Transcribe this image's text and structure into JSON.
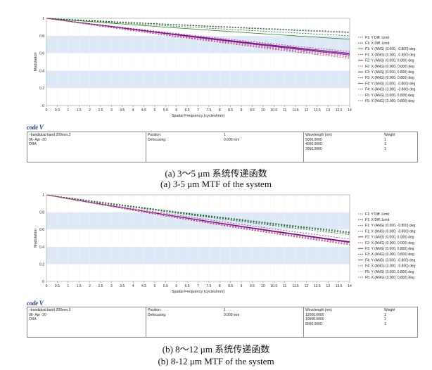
{
  "chart_data": [
    {
      "type": "line",
      "xlabel": "Spatial Frequency (cycles/mm)",
      "ylabel": "Modulation",
      "xlim": [
        0,
        14
      ],
      "ylim": [
        0,
        1
      ],
      "x_ticks": [
        "0",
        "0.5",
        "1",
        "1.5",
        "2",
        "2.5",
        "3",
        "3.5",
        "4",
        "4.5",
        "5",
        "5.5",
        "6",
        "6.5",
        "7",
        "7.5",
        "8",
        "8.5",
        "9",
        "9.5",
        "10",
        "10.5",
        "11",
        "11.5",
        "12",
        "12.5",
        "13",
        "13.5",
        "14"
      ],
      "y_ticks": [
        "0",
        "0.2",
        "0.4",
        "0.6",
        "0.8",
        "1"
      ],
      "legend_position": "right",
      "series": [
        {
          "name": "F1: Y Diff. Limit",
          "color": "#2e8b57",
          "dash": "2,2",
          "x": [
            0,
            14
          ],
          "y": [
            1.0,
            0.845
          ]
        },
        {
          "name": "F1: X Diff. Limit",
          "color": "#1a1a1a",
          "dash": "2,2",
          "x": [
            0,
            14
          ],
          "y": [
            1.0,
            0.835
          ]
        },
        {
          "name": "F1: Y (ANG) (0.000, -0.800) deg",
          "color": "#228b22",
          "dash": "",
          "x": [
            0,
            14
          ],
          "y": [
            1.0,
            0.76
          ]
        },
        {
          "name": "F1: X (ANG) (0.000, -0.800) deg",
          "color": "#c71585",
          "dash": "2,2",
          "x": [
            0,
            14
          ],
          "y": [
            1.0,
            0.62
          ]
        },
        {
          "name": "F2: Y (ANG) (0.000, 0.000) deg",
          "color": "#8b008b",
          "dash": "",
          "x": [
            0,
            14
          ],
          "y": [
            1.0,
            0.6
          ]
        },
        {
          "name": "F2: X (ANG) (0.000, 0.000) deg",
          "color": "#ff1493",
          "dash": "2,2",
          "x": [
            0,
            14
          ],
          "y": [
            1.0,
            0.575
          ]
        },
        {
          "name": "F3: Y (ANG) (0.000, 0.800) deg",
          "color": "#4b0082",
          "dash": "",
          "x": [
            0,
            14
          ],
          "y": [
            1.0,
            0.59
          ]
        },
        {
          "name": "F3: X (ANG) (0.000, 0.800) deg",
          "color": "#006400",
          "dash": "2,2",
          "x": [
            0,
            14
          ],
          "y": [
            1.0,
            0.8
          ]
        },
        {
          "name": "F4: Y (ANG) (3.000, -0.800) deg",
          "color": "#7b2d8b",
          "dash": "",
          "x": [
            0,
            14
          ],
          "y": [
            1.0,
            0.58
          ]
        },
        {
          "name": "F4: X (ANG) (3.000, -0.800) deg",
          "color": "#dc143c",
          "dash": "2,2",
          "x": [
            0,
            14
          ],
          "y": [
            1.0,
            0.555
          ]
        },
        {
          "name": "F5: Y (ANG) (3.000, 0.800) deg",
          "color": "#ee82ee",
          "dash": "2,2",
          "x": [
            0,
            14
          ],
          "y": [
            1.0,
            0.565
          ]
        },
        {
          "name": "F5: X (ANG) (3.000, 0.800) deg",
          "color": "#b03060",
          "dash": "2,2",
          "x": [
            0,
            14
          ],
          "y": [
            1.0,
            0.54
          ]
        }
      ]
    },
    {
      "type": "line",
      "xlabel": "Spatial Frequency (cycles/mm)",
      "ylabel": "Modulation",
      "xlim": [
        0,
        14
      ],
      "ylim": [
        0,
        1
      ],
      "x_ticks": [
        "0",
        "0.5",
        "1",
        "1.5",
        "2",
        "2.5",
        "3",
        "3.5",
        "4",
        "4.5",
        "5",
        "5.5",
        "6",
        "6.5",
        "7",
        "7.5",
        "8",
        "8.5",
        "9",
        "9.5",
        "10",
        "10.5",
        "11",
        "11.5",
        "12",
        "12.5",
        "13",
        "13.5",
        "14"
      ],
      "y_ticks": [
        "0",
        "0.2",
        "0.4",
        "0.6",
        "0.8",
        "1"
      ],
      "legend_position": "right",
      "series": [
        {
          "name": "F1: Y Diff. Limit",
          "color": "#2e8b57",
          "dash": "2,2",
          "x": [
            0,
            14
          ],
          "y": [
            1.0,
            0.575
          ]
        },
        {
          "name": "F1: X Diff. Limit",
          "color": "#1a1a1a",
          "dash": "2,2",
          "x": [
            0,
            14
          ],
          "y": [
            1.0,
            0.565
          ]
        },
        {
          "name": "F1: Y (ANG) (0.000, -0.800) deg",
          "color": "#228b22",
          "dash": "2,2",
          "x": [
            0,
            14
          ],
          "y": [
            1.0,
            0.555
          ]
        },
        {
          "name": "F1: X (ANG) (0.000, -0.800) deg",
          "color": "#c71585",
          "dash": "2,2",
          "x": [
            0,
            14
          ],
          "y": [
            1.0,
            0.49
          ]
        },
        {
          "name": "F2: Y (ANG) (0.000, 0.000) deg",
          "color": "#8b008b",
          "dash": "",
          "x": [
            0,
            14
          ],
          "y": [
            1.0,
            0.46
          ]
        },
        {
          "name": "F2: X (ANG) (0.000, 0.000) deg",
          "color": "#ff1493",
          "dash": "2,2",
          "x": [
            0,
            14
          ],
          "y": [
            1.0,
            0.445
          ]
        },
        {
          "name": "F3: Y (ANG) (0.000, 0.800) deg",
          "color": "#4b0082",
          "dash": "",
          "x": [
            0,
            14
          ],
          "y": [
            1.0,
            0.455
          ]
        },
        {
          "name": "F3: X (ANG) (0.000, 0.800) deg",
          "color": "#006400",
          "dash": "2,2",
          "x": [
            0,
            14
          ],
          "y": [
            1.0,
            0.54
          ]
        },
        {
          "name": "F4: Y (ANG) (3.000, -0.800) deg",
          "color": "#7b2d8b",
          "dash": "",
          "x": [
            0,
            14
          ],
          "y": [
            1.0,
            0.45
          ]
        },
        {
          "name": "F4: X (ANG) (3.000, -0.800) deg",
          "color": "#dc143c",
          "dash": "2,2",
          "x": [
            0,
            14
          ],
          "y": [
            1.0,
            0.43
          ]
        },
        {
          "name": "F5: Y (ANG) (3.000, 0.800) deg",
          "color": "#ee82ee",
          "dash": "2,2",
          "x": [
            0,
            14
          ],
          "y": [
            1.0,
            0.44
          ]
        },
        {
          "name": "F5: X (ANG) (3.000, 0.800) deg",
          "color": "#b03060",
          "dash": "2,2",
          "x": [
            0,
            14
          ],
          "y": [
            1.0,
            0.42
          ]
        }
      ]
    }
  ],
  "panels": [
    {
      "logo": "code V",
      "info": {
        "title": "~bandidual band 200mm.3",
        "date": "06- Apr -20",
        "ora": "ORA",
        "position_label": "Position:",
        "position_value": "1",
        "defocusing_label": "Defocusing:",
        "defocusing_value": "0.000 mm",
        "wavelength_label": "Wavelength (nm)",
        "weight_label": "Weight",
        "wavelengths": [
          "5000.0000",
          "4000.0000",
          "3000.0000"
        ],
        "weights": [
          "1",
          "1",
          "1"
        ]
      },
      "caption_cn": "(a) 3～5 μm 系统传递函数",
      "caption_en": "(a) 3-5 μm MTF of the system"
    },
    {
      "logo": "code V",
      "info": {
        "title": "~bandidual band 200mm.3",
        "date": "06- Apr -20",
        "ora": "ORA",
        "position_label": "Position:",
        "position_value": "1",
        "defocusing_label": "Defocusing:",
        "defocusing_value": "0.000 mm",
        "wavelength_label": "Wavelength (nm)",
        "weight_label": "Weight",
        "wavelengths": [
          "12000.0000",
          "10000.0000",
          "8000.0000"
        ],
        "weights": [
          "1",
          "1",
          "1"
        ]
      },
      "caption_cn": "(b) 8～12 μm 系统传递函数",
      "caption_en": "(b) 8-12 μm MTF of the system"
    }
  ]
}
